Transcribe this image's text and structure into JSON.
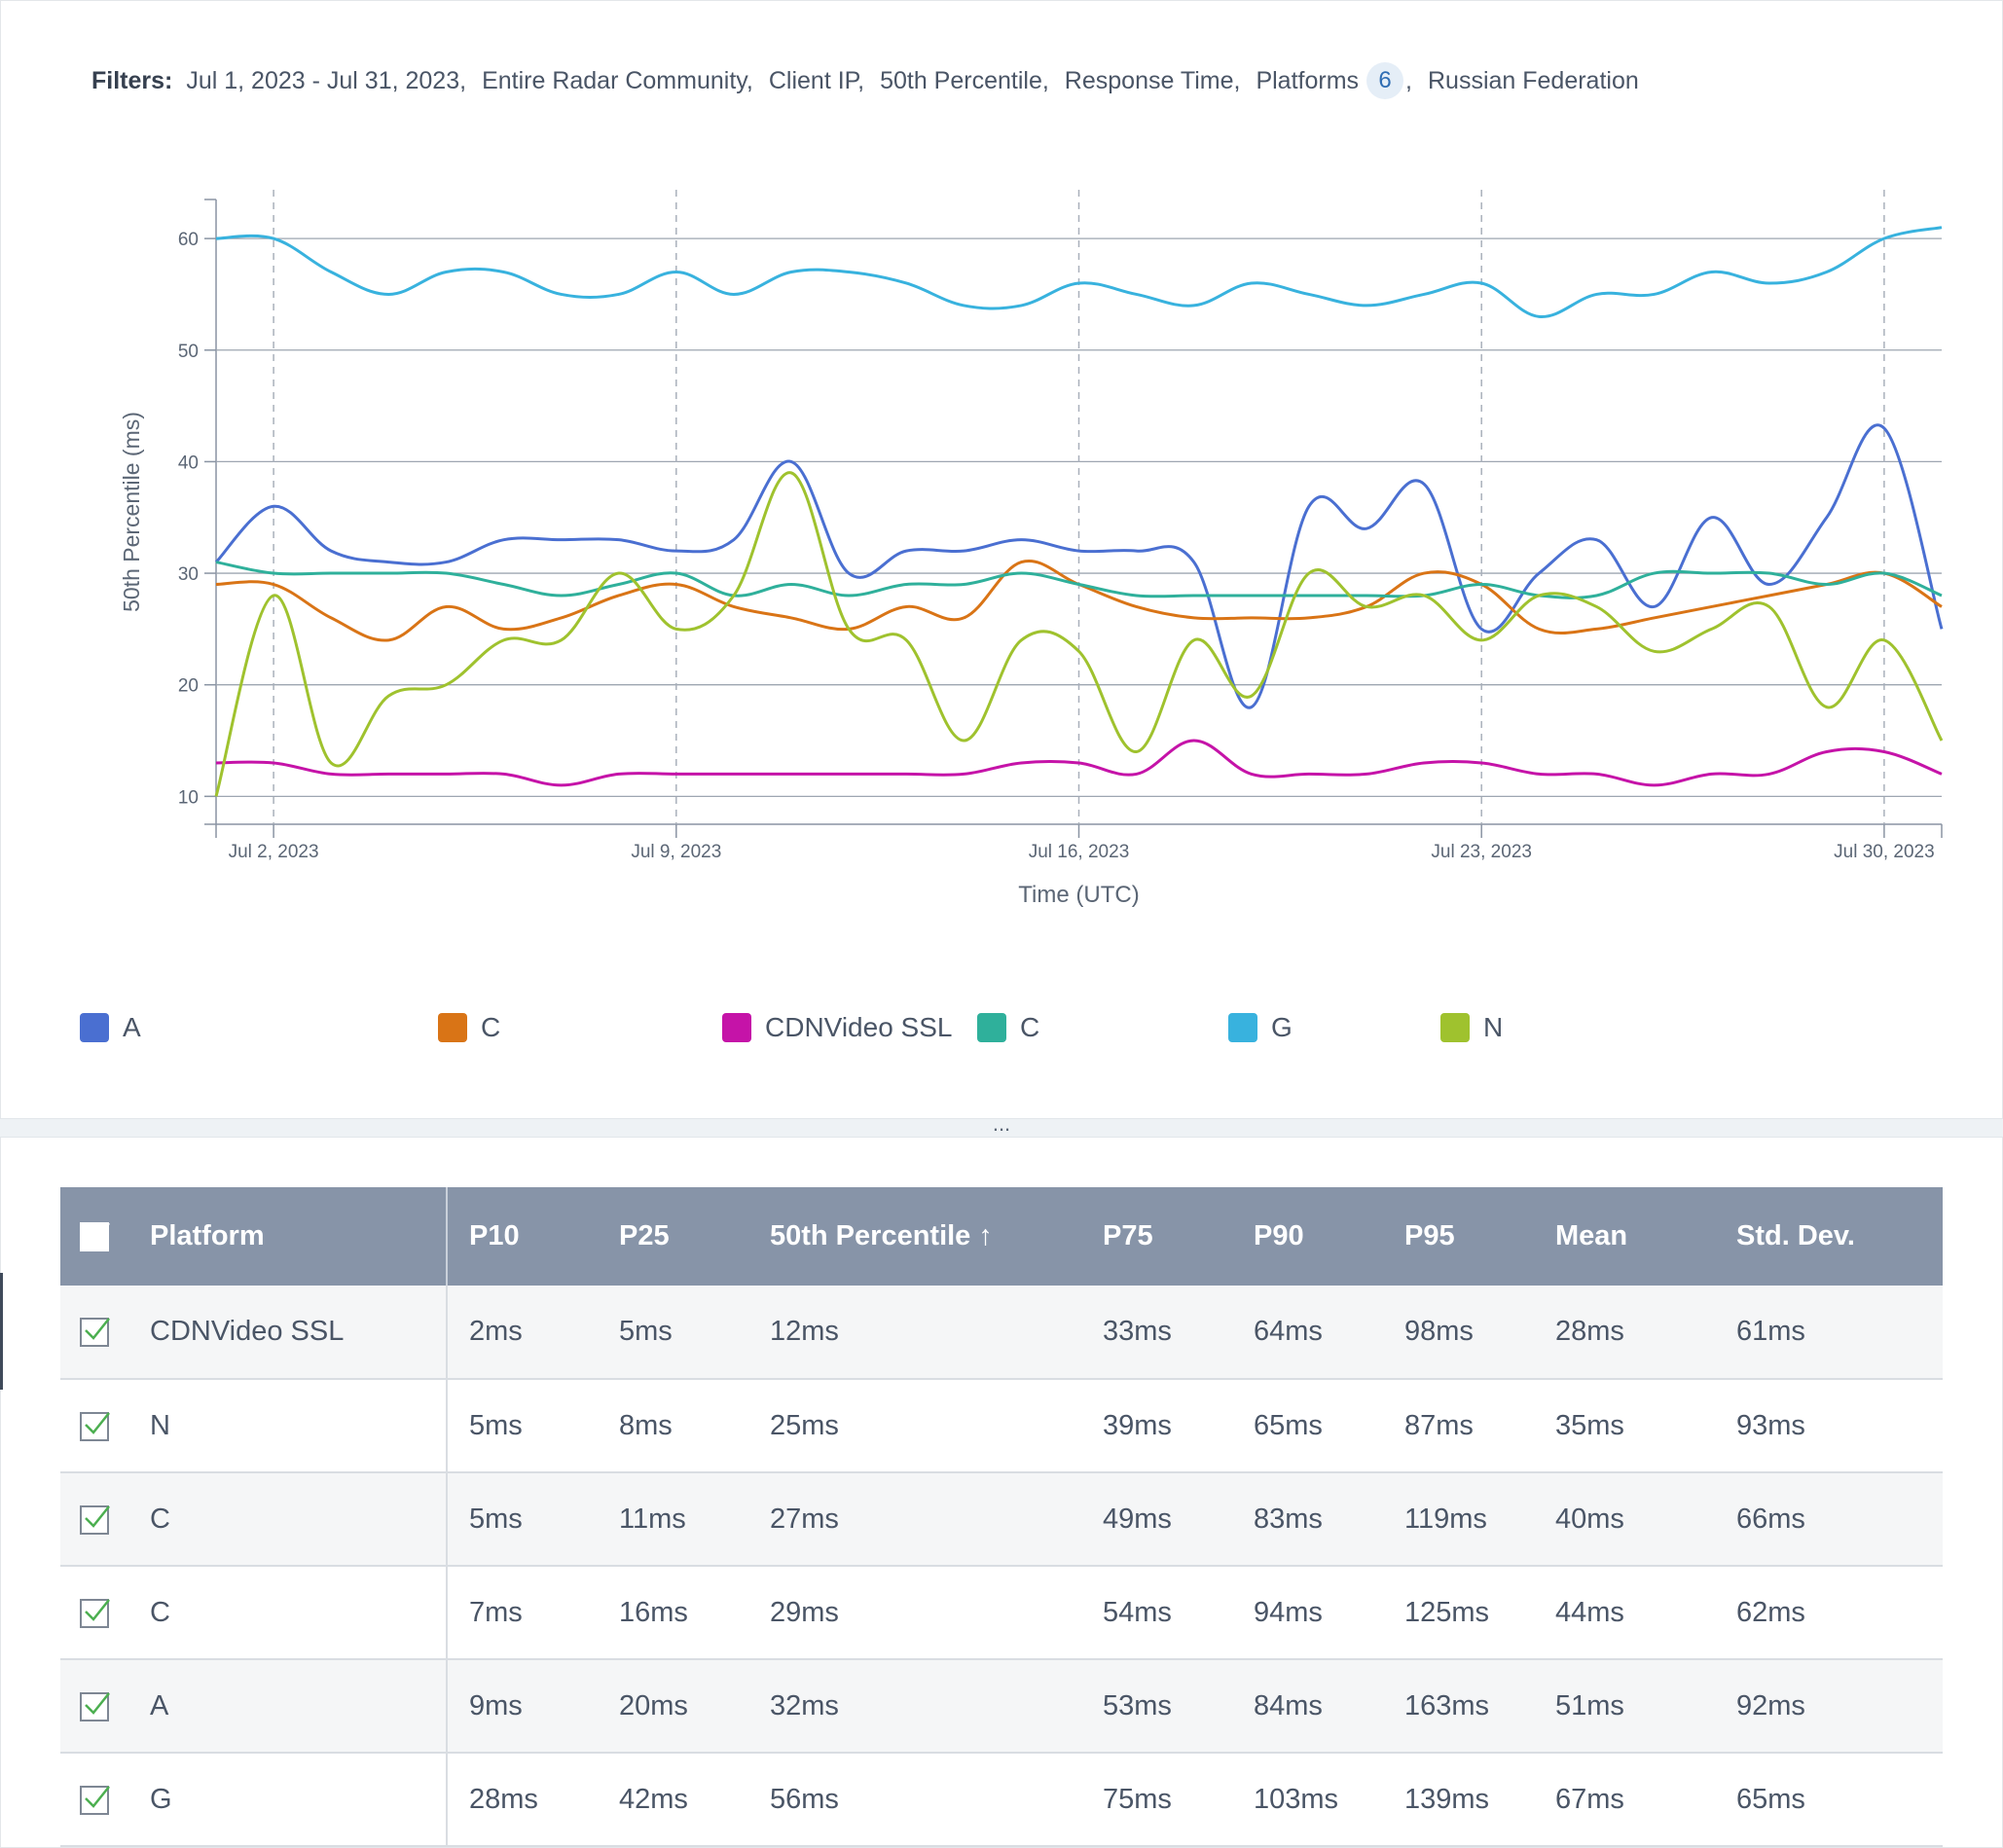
{
  "filters": {
    "label": "Filters:",
    "items": [
      "Jul 1, 2023 - Jul 31, 2023,",
      "Entire Radar Community,",
      "Client IP,",
      "50th Percentile,",
      "Response Time,"
    ],
    "platforms_label": "Platforms",
    "platforms_count": "6",
    "platforms_comma": ",",
    "country": "Russian Federation"
  },
  "colors": {
    "A": "#4a6fd1",
    "C_orange": "#d97416",
    "CDNVideo SSL": "#c513a8",
    "C_teal": "#2fb09b",
    "G": "#38b2de",
    "N": "#9fc22e"
  },
  "chart_data": {
    "type": "line",
    "ylabel": "50th Percentile (ms)",
    "xlabel": "Time (UTC)",
    "ylim": [
      7.5,
      63.5
    ],
    "y_ticks": [
      "10",
      "20",
      "30",
      "40",
      "50",
      "60"
    ],
    "x_ticks": [
      "Jul 2, 2023",
      "Jul 9, 2023",
      "Jul 16, 2023",
      "Jul 23, 2023",
      "Jul 30, 2023"
    ],
    "grid": true,
    "legend_position": "bottom",
    "x": [
      "Jul 1",
      "Jul 2",
      "Jul 3",
      "Jul 4",
      "Jul 5",
      "Jul 6",
      "Jul 7",
      "Jul 8",
      "Jul 9",
      "Jul 10",
      "Jul 11",
      "Jul 12",
      "Jul 13",
      "Jul 14",
      "Jul 15",
      "Jul 16",
      "Jul 17",
      "Jul 18",
      "Jul 19",
      "Jul 20",
      "Jul 21",
      "Jul 22",
      "Jul 23",
      "Jul 24",
      "Jul 25",
      "Jul 26",
      "Jul 27",
      "Jul 28",
      "Jul 29",
      "Jul 30",
      "Jul 31"
    ],
    "series": [
      {
        "name": "A",
        "color_key": "A",
        "values": [
          31,
          36,
          32,
          31,
          31,
          33,
          33,
          33,
          32,
          33,
          40,
          30,
          32,
          32,
          33,
          32,
          32,
          31,
          18,
          36,
          34,
          38,
          25,
          30,
          33,
          27,
          35,
          29,
          35,
          43,
          25
        ]
      },
      {
        "name": "C",
        "color_key": "C_orange",
        "values": [
          29,
          29,
          26,
          24,
          27,
          25,
          26,
          28,
          29,
          27,
          26,
          25,
          27,
          26,
          31,
          29,
          27,
          26,
          26,
          26,
          27,
          30,
          29,
          25,
          25,
          26,
          27,
          28,
          29,
          30,
          27
        ]
      },
      {
        "name": "CDNVideo SSL",
        "color_key": "CDNVideo SSL",
        "values": [
          13,
          13,
          12,
          12,
          12,
          12,
          11,
          12,
          12,
          12,
          12,
          12,
          12,
          12,
          13,
          13,
          12,
          15,
          12,
          12,
          12,
          13,
          13,
          12,
          12,
          11,
          12,
          12,
          14,
          14,
          12
        ]
      },
      {
        "name": "C",
        "color_key": "C_teal",
        "values": [
          31,
          30,
          30,
          30,
          30,
          29,
          28,
          29,
          30,
          28,
          29,
          28,
          29,
          29,
          30,
          29,
          28,
          28,
          28,
          28,
          28,
          28,
          29,
          28,
          28,
          30,
          30,
          30,
          29,
          30,
          28
        ]
      },
      {
        "name": "G",
        "color_key": "G",
        "values": [
          60,
          60,
          57,
          55,
          57,
          57,
          55,
          55,
          57,
          55,
          57,
          57,
          56,
          54,
          54,
          56,
          55,
          54,
          56,
          55,
          54,
          55,
          56,
          53,
          55,
          55,
          57,
          56,
          57,
          60,
          61
        ]
      },
      {
        "name": "N",
        "color_key": "N",
        "values": [
          10,
          28,
          13,
          19,
          20,
          24,
          24,
          30,
          25,
          28,
          39,
          25,
          24,
          15,
          24,
          23,
          14,
          24,
          19,
          30,
          27,
          28,
          24,
          28,
          27,
          23,
          25,
          27,
          18,
          24,
          15
        ]
      }
    ]
  },
  "legend": [
    {
      "label": "A",
      "color_key": "A"
    },
    {
      "label": "C",
      "color_key": "C_orange"
    },
    {
      "label": "CDNVideo SSL",
      "color_key": "CDNVideo SSL"
    },
    {
      "label": "C",
      "color_key": "C_teal"
    },
    {
      "label": "G",
      "color_key": "G"
    },
    {
      "label": "N",
      "color_key": "N"
    }
  ],
  "splitter": {
    "label": "..."
  },
  "table": {
    "headers": [
      "Platform",
      "P10",
      "P25",
      "50th Percentile ↑",
      "P75",
      "P90",
      "P95",
      "Mean",
      "Std. Dev."
    ],
    "rows": [
      {
        "platform": "CDNVideo SSL",
        "p10": "2ms",
        "p25": "5ms",
        "p50": "12ms",
        "p75": "33ms",
        "p90": "64ms",
        "p95": "98ms",
        "mean": "28ms",
        "std": "61ms"
      },
      {
        "platform": "N",
        "p10": "5ms",
        "p25": "8ms",
        "p50": "25ms",
        "p75": "39ms",
        "p90": "65ms",
        "p95": "87ms",
        "mean": "35ms",
        "std": "93ms"
      },
      {
        "platform": "C",
        "p10": "5ms",
        "p25": "11ms",
        "p50": "27ms",
        "p75": "49ms",
        "p90": "83ms",
        "p95": "119ms",
        "mean": "40ms",
        "std": "66ms"
      },
      {
        "platform": "C",
        "p10": "7ms",
        "p25": "16ms",
        "p50": "29ms",
        "p75": "54ms",
        "p90": "94ms",
        "p95": "125ms",
        "mean": "44ms",
        "std": "62ms"
      },
      {
        "platform": "A",
        "p10": "9ms",
        "p25": "20ms",
        "p50": "32ms",
        "p75": "53ms",
        "p90": "84ms",
        "p95": "163ms",
        "mean": "51ms",
        "std": "92ms"
      },
      {
        "platform": "G",
        "p10": "28ms",
        "p25": "42ms",
        "p50": "56ms",
        "p75": "75ms",
        "p90": "103ms",
        "p95": "139ms",
        "mean": "67ms",
        "std": "65ms"
      }
    ]
  }
}
